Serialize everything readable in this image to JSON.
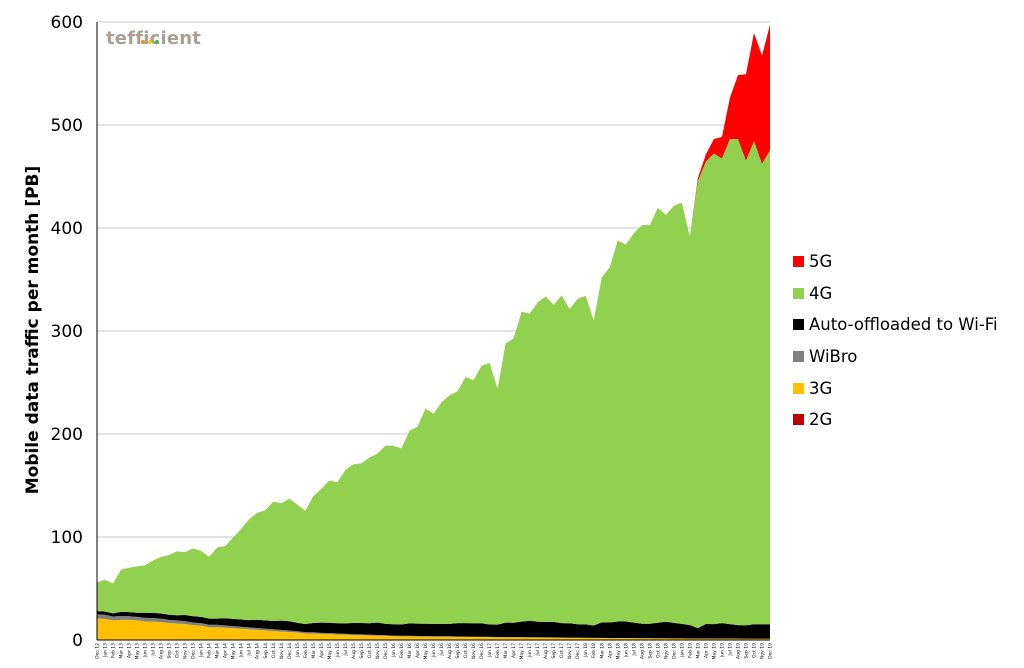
{
  "logo": {
    "text": "tefficient",
    "dot_colors": [
      "#f28c28",
      "#f5d000",
      "#4caf50"
    ]
  },
  "chart_data": {
    "type": "area",
    "stacked": true,
    "ylabel": "Mobile data traffic per month [PB]",
    "xlabel": "",
    "ylim": [
      0,
      600
    ],
    "yticks": [
      0,
      100,
      200,
      300,
      400,
      500,
      600
    ],
    "grid": true,
    "legend_position": "right",
    "x": [
      "Dec 12",
      "Jan 13",
      "Feb 13",
      "Mar 13",
      "Apr 13",
      "May 13",
      "Jun 13",
      "Jul 13",
      "Aug 13",
      "Sep 13",
      "Oct 13",
      "Nov 13",
      "Dec 13",
      "Jan 14",
      "Feb 14",
      "Mar 14",
      "Apr 14",
      "May 14",
      "Jun 14",
      "Jul 14",
      "Aug 14",
      "Sep 14",
      "Oct 14",
      "Nov 14",
      "Dec 14",
      "Jan 15",
      "Feb 15",
      "Mar 15",
      "Apr 15",
      "May 15",
      "Jun 15",
      "Jul 15",
      "Aug 15",
      "Sep 15",
      "Oct 15",
      "Nov 15",
      "Dec 15",
      "Jan 16",
      "Feb 16",
      "Mar 16",
      "Apr 16",
      "May 16",
      "Jun 16",
      "Jul 16",
      "Aug 16",
      "Sep 16",
      "Oct 16",
      "Nov 16",
      "Dec 16",
      "Jan 17",
      "Feb 17",
      "Mar 17",
      "Apr 17",
      "May 17",
      "Jun 17",
      "Jul 17",
      "Aug 17",
      "Sep 17",
      "Oct 17",
      "Nov 17",
      "Dec 17",
      "Jan 18",
      "Feb 18",
      "Mar 18",
      "Apr 18",
      "May 18",
      "Jun 18",
      "Jul 18",
      "Aug 18",
      "Sep 18",
      "Oct 18",
      "Nov 18",
      "Dec 18",
      "Jan 19",
      "Feb 19",
      "Mar 19",
      "Apr 19",
      "May 19",
      "Jun 19",
      "Jul 19",
      "Aug 19",
      "Sep 19",
      "Oct 19",
      "Nov 19",
      "Dec 19"
    ],
    "series": [
      {
        "name": "2G",
        "color": "#c00000",
        "values": [
          0.5,
          0.5,
          0.5,
          0.5,
          0.5,
          0.5,
          0.5,
          0.5,
          0.5,
          0.5,
          0.5,
          0.5,
          0.4,
          0.4,
          0.4,
          0.4,
          0.4,
          0.4,
          0.4,
          0.4,
          0.3,
          0.3,
          0.3,
          0.3,
          0.3,
          0.3,
          0.3,
          0.3,
          0.3,
          0.3,
          0.3,
          0.2,
          0.2,
          0.2,
          0.2,
          0.2,
          0.2,
          0.2,
          0.2,
          0.2,
          0.2,
          0.2,
          0.2,
          0.2,
          0.2,
          0.2,
          0.2,
          0.2,
          0.2,
          0.2,
          0.2,
          0.2,
          0.2,
          0.2,
          0.2,
          0.2,
          0.2,
          0.2,
          0.2,
          0.2,
          0.2,
          0.2,
          0.2,
          0.2,
          0.2,
          0.2,
          0.2,
          0.2,
          0.2,
          0.2,
          0.2,
          0.2,
          0.2,
          0.2,
          0.2,
          0.2,
          0.2,
          0.2,
          0.2,
          0.2,
          0.2,
          0.2,
          0.2,
          0.2,
          0.2
        ]
      },
      {
        "name": "3G",
        "color": "#ffc000",
        "values": [
          20.5,
          20,
          18.5,
          19,
          19,
          18.5,
          17.5,
          17.5,
          17,
          16,
          15.5,
          15,
          14,
          13.5,
          12,
          12,
          11.5,
          11,
          10.5,
          10,
          9.5,
          9,
          8.5,
          8,
          7.5,
          7,
          6,
          6,
          5.5,
          5.5,
          5,
          5,
          4.5,
          4.5,
          4.2,
          4,
          3.8,
          3.5,
          3.3,
          3.3,
          3.2,
          3.1,
          3,
          3,
          2.9,
          2.8,
          2.8,
          2.7,
          2.6,
          2.5,
          2.4,
          2.4,
          2.3,
          2.3,
          2.2,
          2.2,
          2.1,
          2,
          2,
          1.9,
          1.9,
          1.8,
          1.7,
          1.7,
          1.6,
          1.6,
          1.5,
          1.5,
          1.4,
          1.4,
          1.3,
          1.3,
          1.2,
          1.2,
          1.1,
          1.1,
          1.1,
          1,
          1,
          1,
          1,
          0.9,
          0.9,
          0.9,
          0.9
        ]
      },
      {
        "name": "WiBro",
        "color": "#808080",
        "values": [
          4,
          4,
          3.8,
          3.8,
          3.6,
          3.5,
          3.5,
          3.3,
          3.2,
          3,
          3,
          2.8,
          2.6,
          2.5,
          2.4,
          2.4,
          2.2,
          2.1,
          2,
          1.9,
          1.8,
          1.7,
          1.6,
          1.5,
          1.4,
          1.3,
          1.2,
          1.2,
          1.1,
          1,
          1,
          0.9,
          0.9,
          0.8,
          0.8,
          0.7,
          0.7,
          0.6,
          0.6,
          0.6,
          0.5,
          0.5,
          0.5,
          0.5,
          0.5,
          0.4,
          0.4,
          0.4,
          0.4,
          0.4,
          0.3,
          0.3,
          0.3,
          0.3,
          0.3,
          0.3,
          0.3,
          0.3,
          0.2,
          0.2,
          0.2,
          0.2,
          0.2,
          0.2,
          0.2,
          0.2,
          0.2,
          0.2,
          0.2,
          0.2,
          0.2,
          0.2,
          0.2,
          0.2,
          0.2,
          0.2,
          0.2,
          0.2,
          0.2,
          0.2,
          0.2,
          0.2,
          0.2,
          0.2,
          0.2
        ]
      },
      {
        "name": "Auto-offloaded to Wi-Fi",
        "color": "#000000",
        "values": [
          3,
          3,
          3,
          4,
          4,
          4,
          5,
          5,
          5,
          5,
          5,
          6,
          6,
          6,
          6,
          6,
          7,
          7,
          7,
          7,
          8,
          8,
          8,
          9,
          9,
          8,
          8,
          9,
          10,
          10,
          10,
          10,
          11,
          11,
          11,
          12,
          11,
          11,
          11,
          12,
          12,
          12,
          12,
          12,
          12,
          13,
          13,
          13,
          13,
          12,
          12,
          14,
          14,
          15,
          16,
          15,
          15,
          15,
          14,
          14,
          13,
          13,
          12,
          15,
          15,
          16,
          16,
          15,
          14,
          14,
          15,
          16,
          15,
          14,
          13,
          10,
          14,
          14,
          15,
          14,
          13,
          13,
          14,
          14,
          14
        ]
      },
      {
        "name": "4G",
        "color": "#92d050",
        "values": [
          28,
          31,
          29,
          41,
          43,
          45,
          46,
          51,
          55,
          58,
          62,
          61,
          66,
          64,
          60,
          69,
          70,
          79,
          88,
          98,
          104,
          107,
          116,
          114,
          119,
          115,
          110,
          123,
          130,
          138,
          137,
          149,
          154,
          155,
          161,
          164,
          173,
          173,
          171,
          187,
          191,
          209,
          204,
          215,
          222,
          225,
          239,
          236,
          250,
          254,
          229,
          271,
          276,
          301,
          298,
          310,
          316,
          308,
          318,
          305,
          316,
          319,
          296,
          335,
          345,
          370,
          366,
          378,
          387,
          387,
          403,
          395,
          405,
          409,
          377,
          434,
          449,
          457,
          451,
          471,
          472,
          451,
          469,
          447,
          460
        ]
      },
      {
        "name": "5G",
        "color": "#ff0000",
        "values": [
          0,
          0,
          0,
          0,
          0,
          0,
          0,
          0,
          0,
          0,
          0,
          0,
          0,
          0,
          0,
          0,
          0,
          0,
          0,
          0,
          0,
          0,
          0,
          0,
          0,
          0,
          0,
          0,
          0,
          0,
          0,
          0,
          0,
          0,
          0,
          0,
          0,
          0,
          0,
          0,
          0,
          0,
          0,
          0,
          0,
          0,
          0,
          0,
          0,
          0,
          0,
          0,
          0,
          0,
          0,
          0,
          0,
          0,
          0,
          0,
          0,
          0,
          0,
          0,
          0,
          0,
          0,
          0,
          0,
          0,
          0,
          0,
          0,
          0,
          0,
          3,
          7,
          14,
          21,
          40,
          62,
          84,
          105,
          105,
          122
        ]
      }
    ],
    "legend_order": [
      "5G",
      "4G",
      "Auto-offloaded to Wi-Fi",
      "WiBro",
      "3G",
      "2G"
    ]
  }
}
